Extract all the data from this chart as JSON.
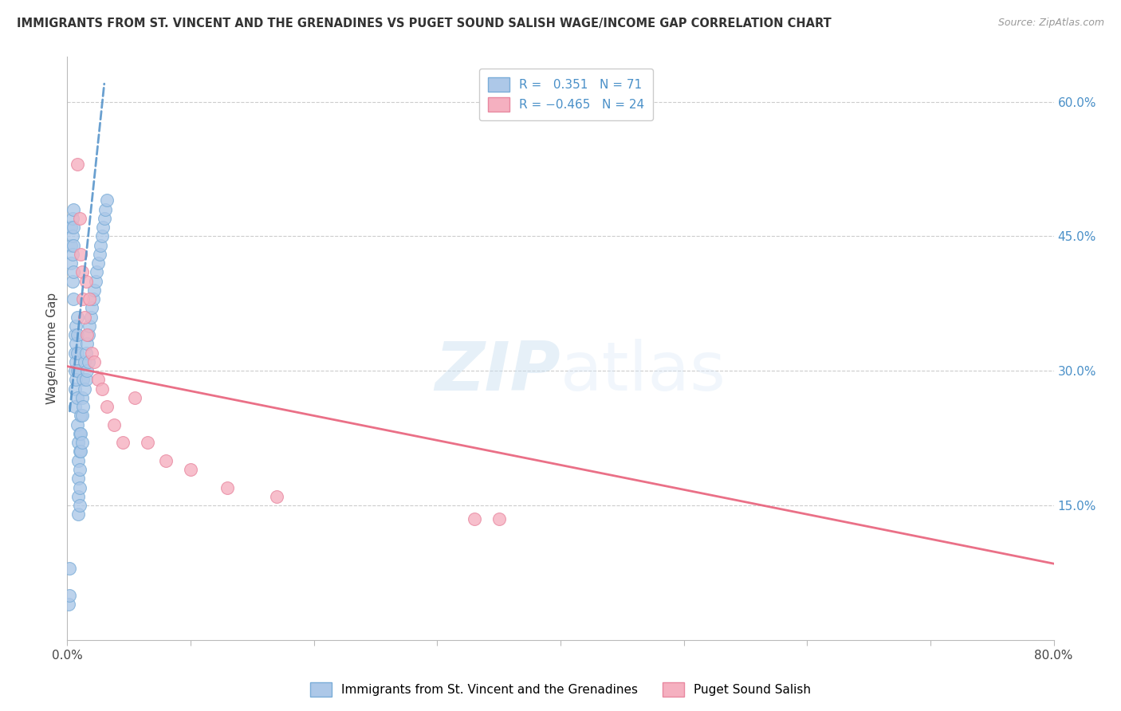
{
  "title": "IMMIGRANTS FROM ST. VINCENT AND THE GRENADINES VS PUGET SOUND SALISH WAGE/INCOME GAP CORRELATION CHART",
  "source": "Source: ZipAtlas.com",
  "ylabel": "Wage/Income Gap",
  "xlim": [
    0.0,
    0.8
  ],
  "ylim": [
    0.0,
    0.65
  ],
  "xtick_positions": [
    0.0,
    0.1,
    0.2,
    0.3,
    0.4,
    0.5,
    0.6,
    0.7,
    0.8
  ],
  "xtick_labels": [
    "0.0%",
    "",
    "",
    "",
    "",
    "",
    "",
    "",
    "80.0%"
  ],
  "yticks_right": [
    0.15,
    0.3,
    0.45,
    0.6
  ],
  "ytick_labels_right": [
    "15.0%",
    "30.0%",
    "45.0%",
    "60.0%"
  ],
  "blue_R": 0.351,
  "blue_N": 71,
  "pink_R": -0.465,
  "pink_N": 24,
  "blue_color": "#adc8e8",
  "pink_color": "#f5b0c0",
  "blue_edge_color": "#7aadd8",
  "pink_edge_color": "#e888a0",
  "blue_line_color": "#5090c8",
  "pink_line_color": "#e8607a",
  "watermark_zip": "ZIP",
  "watermark_atlas": "atlas",
  "legend_label_blue": "Immigrants from St. Vincent and the Grenadines",
  "legend_label_pink": "Puget Sound Salish",
  "blue_scatter_x": [
    0.001,
    0.002,
    0.002,
    0.003,
    0.003,
    0.003,
    0.004,
    0.004,
    0.004,
    0.004,
    0.005,
    0.005,
    0.005,
    0.005,
    0.005,
    0.006,
    0.006,
    0.006,
    0.006,
    0.006,
    0.007,
    0.007,
    0.007,
    0.007,
    0.008,
    0.008,
    0.008,
    0.008,
    0.008,
    0.008,
    0.009,
    0.009,
    0.009,
    0.009,
    0.009,
    0.01,
    0.01,
    0.01,
    0.01,
    0.01,
    0.011,
    0.011,
    0.011,
    0.012,
    0.012,
    0.012,
    0.013,
    0.013,
    0.014,
    0.014,
    0.015,
    0.015,
    0.016,
    0.016,
    0.017,
    0.017,
    0.018,
    0.019,
    0.02,
    0.021,
    0.022,
    0.023,
    0.024,
    0.025,
    0.026,
    0.027,
    0.028,
    0.029,
    0.03,
    0.031,
    0.032
  ],
  "blue_scatter_y": [
    0.04,
    0.08,
    0.05,
    0.46,
    0.44,
    0.42,
    0.47,
    0.45,
    0.43,
    0.4,
    0.48,
    0.46,
    0.44,
    0.41,
    0.38,
    0.34,
    0.32,
    0.3,
    0.28,
    0.26,
    0.35,
    0.33,
    0.31,
    0.29,
    0.36,
    0.34,
    0.32,
    0.3,
    0.27,
    0.24,
    0.22,
    0.2,
    0.18,
    0.16,
    0.14,
    0.23,
    0.21,
    0.19,
    0.17,
    0.15,
    0.25,
    0.23,
    0.21,
    0.27,
    0.25,
    0.22,
    0.29,
    0.26,
    0.31,
    0.28,
    0.32,
    0.29,
    0.33,
    0.3,
    0.34,
    0.31,
    0.35,
    0.36,
    0.37,
    0.38,
    0.39,
    0.4,
    0.41,
    0.42,
    0.43,
    0.44,
    0.45,
    0.46,
    0.47,
    0.48,
    0.49
  ],
  "pink_scatter_x": [
    0.008,
    0.01,
    0.011,
    0.012,
    0.013,
    0.014,
    0.015,
    0.016,
    0.018,
    0.02,
    0.022,
    0.025,
    0.028,
    0.032,
    0.038,
    0.045,
    0.055,
    0.065,
    0.08,
    0.1,
    0.13,
    0.17,
    0.33,
    0.35
  ],
  "pink_scatter_y": [
    0.53,
    0.47,
    0.43,
    0.41,
    0.38,
    0.36,
    0.4,
    0.34,
    0.38,
    0.32,
    0.31,
    0.29,
    0.28,
    0.26,
    0.24,
    0.22,
    0.27,
    0.22,
    0.2,
    0.19,
    0.17,
    0.16,
    0.135,
    0.135
  ],
  "blue_trend_x": [
    0.002,
    0.03
  ],
  "blue_trend_y": [
    0.255,
    0.62
  ],
  "pink_trend_x": [
    0.0,
    0.8
  ],
  "pink_trend_y": [
    0.305,
    0.085
  ]
}
